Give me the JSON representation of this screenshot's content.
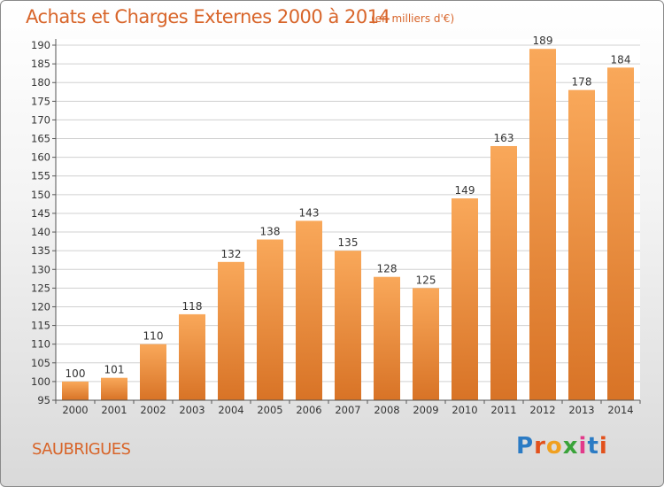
{
  "header": {
    "title": "Achats et Charges Externes 2000 à 2014",
    "unit": "(en milliers d'€)"
  },
  "footer": {
    "town": "SAUBRIGUES",
    "brand": "Proxiti",
    "brand_letters": [
      "P",
      "r",
      "o",
      "x",
      "i",
      "t",
      "i"
    ],
    "brand_colors": [
      "#2b7bc4",
      "#e2511c",
      "#f0a020",
      "#3aa33a",
      "#e23a8a",
      "#2b7bc4",
      "#e2511c"
    ]
  },
  "colors": {
    "title": "#d8652a",
    "bar_light": "#f9a85a",
    "bar_dark": "#d87326",
    "grid": "#d0d0d0",
    "axis": "#555555"
  },
  "chart_data": {
    "type": "bar",
    "title": "Achats et Charges Externes 2000 à 2014",
    "categories": [
      "2000",
      "2001",
      "2002",
      "2003",
      "2004",
      "2005",
      "2006",
      "2007",
      "2008",
      "2009",
      "2010",
      "2011",
      "2012",
      "2013",
      "2014"
    ],
    "values": [
      100,
      101,
      110,
      118,
      132,
      138,
      143,
      135,
      128,
      125,
      149,
      163,
      189,
      178,
      184
    ],
    "ylim": [
      95,
      190
    ],
    "yticks": [
      95,
      100,
      105,
      110,
      115,
      120,
      125,
      130,
      135,
      140,
      145,
      150,
      155,
      160,
      165,
      170,
      175,
      180,
      185,
      190
    ],
    "grid": true,
    "data_labels": true
  }
}
